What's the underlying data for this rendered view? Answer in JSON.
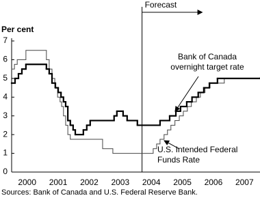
{
  "chart_data": {
    "type": "step-line",
    "y_label": "Per cent",
    "xlim": [
      2000,
      2008
    ],
    "ylim": [
      0,
      7
    ],
    "yticks": [
      0,
      1,
      2,
      3,
      4,
      5,
      6,
      7
    ],
    "xticks": [
      {
        "value": 2000.5,
        "label": "2000"
      },
      {
        "value": 2001.5,
        "label": "2001"
      },
      {
        "value": 2002.5,
        "label": "2002"
      },
      {
        "value": 2003.5,
        "label": "2003"
      },
      {
        "value": 2004.5,
        "label": "2004"
      },
      {
        "value": 2005.5,
        "label": "2005"
      },
      {
        "value": 2006.5,
        "label": "2006"
      },
      {
        "value": 2007.5,
        "label": "2007"
      }
    ],
    "forecast": {
      "label": "Forecast",
      "x": 2004.2
    },
    "series": [
      {
        "name": "Bank of Canada overnight target rate",
        "color": "#000000",
        "width": 2.2,
        "x": [
          2000.0,
          2000.11,
          2000.22,
          2000.33,
          2000.46,
          2001.12,
          2001.21,
          2001.3,
          2001.41,
          2001.5,
          2001.59,
          2001.67,
          2001.74,
          2001.81,
          2001.89,
          2001.98,
          2002.05,
          2002.31,
          2002.42,
          2002.53,
          2003.3,
          2003.39,
          2003.59,
          2003.72,
          2004.05,
          2004.78,
          2005.09,
          2005.29,
          2005.44,
          2005.64,
          2005.81,
          2006.01,
          2006.19,
          2006.37,
          2006.63,
          2008.0
        ],
        "values": [
          4.75,
          5.0,
          5.25,
          5.5,
          5.75,
          5.5,
          5.25,
          4.75,
          4.5,
          4.25,
          4.0,
          3.75,
          3.5,
          2.75,
          2.5,
          2.25,
          2.0,
          2.25,
          2.5,
          2.75,
          3.0,
          3.25,
          3.0,
          2.75,
          2.5,
          2.75,
          3.0,
          3.25,
          3.5,
          3.75,
          4.0,
          4.25,
          4.5,
          4.75,
          5.0,
          5.0
        ]
      },
      {
        "name": "U.S. Intended Federal Funds Rate",
        "color": "#444444",
        "width": 1,
        "x": [
          2000.0,
          2000.09,
          2000.18,
          2000.46,
          2001.12,
          2001.21,
          2001.3,
          2001.39,
          2001.48,
          2001.56,
          2001.61,
          2001.67,
          2001.74,
          2001.81,
          2001.89,
          2002.93,
          2003.26,
          2004.56,
          2004.67,
          2004.78,
          2004.91,
          2005.02,
          2005.13,
          2005.26,
          2005.4,
          2005.53,
          2005.66,
          2005.79,
          2005.95,
          2006.08,
          2006.23,
          2006.39,
          2006.85,
          2008.0
        ],
        "values": [
          5.5,
          5.75,
          6.0,
          6.5,
          6.0,
          5.5,
          5.0,
          4.5,
          4.0,
          3.75,
          3.5,
          3.0,
          2.5,
          2.0,
          1.75,
          1.25,
          1.0,
          1.25,
          1.5,
          1.75,
          2.0,
          2.25,
          2.5,
          2.75,
          3.0,
          3.25,
          3.5,
          3.75,
          4.0,
          4.25,
          4.5,
          4.75,
          5.0,
          5.0
        ]
      }
    ],
    "source": "Sources:  Bank of Canada and U.S. Federal Reserve Bank."
  }
}
